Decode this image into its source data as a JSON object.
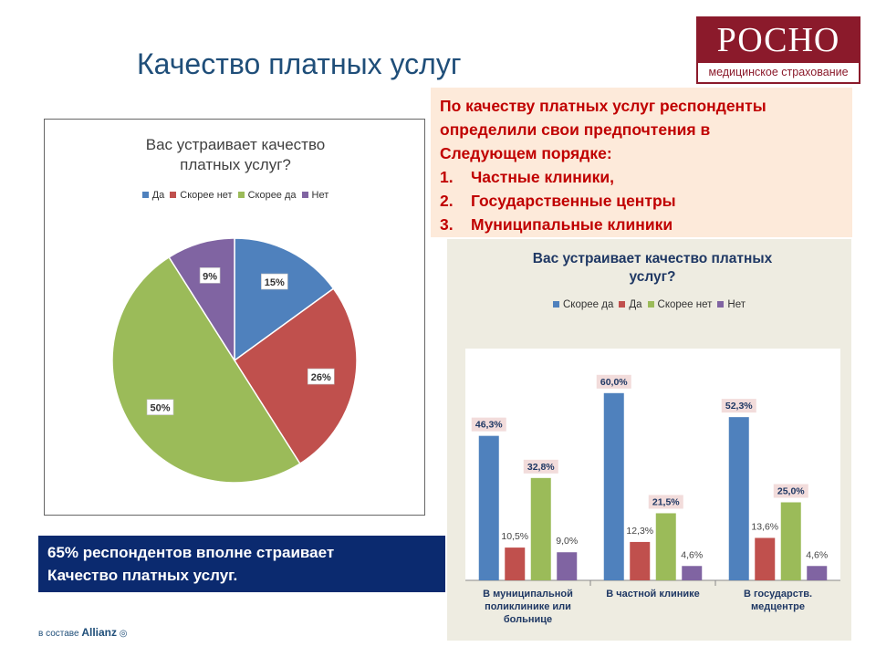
{
  "slide_title": "Качество платных услуг",
  "logo": {
    "name": "РОСНО",
    "tagline": "медицинское страхование"
  },
  "info": {
    "lines": [
      "По качеству платных услуг респонденты",
      "определили  свои предпочтения в",
      "Следующем порядке:"
    ],
    "items": [
      {
        "num": "1.",
        "text": "Частные клиники,"
      },
      {
        "num": "2.",
        "text": "Государственные центры"
      },
      {
        "num": "3.",
        "text": "Муниципальные клиники"
      }
    ]
  },
  "summary": {
    "line1": "65% респондентов вполне страивает",
    "line2": "Качество платных услуг."
  },
  "footer": {
    "prefix": "в составе",
    "brand": "Allianz"
  },
  "chart_data": [
    {
      "type": "pie",
      "title_lines": [
        "Вас устраивает качество",
        "платных услуг?"
      ],
      "labels": [
        "Да",
        "Скорее нет",
        "Скорее да",
        "Нет"
      ],
      "values": [
        15,
        26,
        50,
        9
      ],
      "value_labels": [
        "15%",
        "26%",
        "50%",
        "9%"
      ],
      "colors": [
        "#4f81bd",
        "#c0504d",
        "#9bbb59",
        "#8064a2"
      ],
      "legend_position": "top"
    },
    {
      "type": "bar",
      "title_lines": [
        "Вас устраивает качество платных",
        "услуг?"
      ],
      "categories": [
        [
          "В муниципальной",
          "поликлинике или",
          "больнице"
        ],
        [
          "В частной клинике"
        ],
        [
          "В государств.",
          "медцентре"
        ]
      ],
      "series": [
        {
          "name": "Скорее да",
          "color": "#4f81bd",
          "values": [
            46.3,
            60.0,
            52.3
          ],
          "labels": [
            "46,3%",
            "60,0%",
            "52,3%"
          ]
        },
        {
          "name": "Да",
          "color": "#c0504d",
          "values": [
            10.5,
            12.3,
            13.6
          ],
          "labels": [
            "10,5%",
            "12,3%",
            "13,6%"
          ]
        },
        {
          "name": "Скорее нет",
          "color": "#9bbb59",
          "values": [
            32.8,
            21.5,
            25.0
          ],
          "labels": [
            "32,8%",
            "21,5%",
            "25,0%"
          ]
        },
        {
          "name": "Нет",
          "color": "#8064a2",
          "values": [
            9.0,
            4.6,
            4.6
          ],
          "labels": [
            "9,0%",
            "4,6%",
            "4,6%"
          ]
        }
      ],
      "legend_position": "top"
    }
  ]
}
